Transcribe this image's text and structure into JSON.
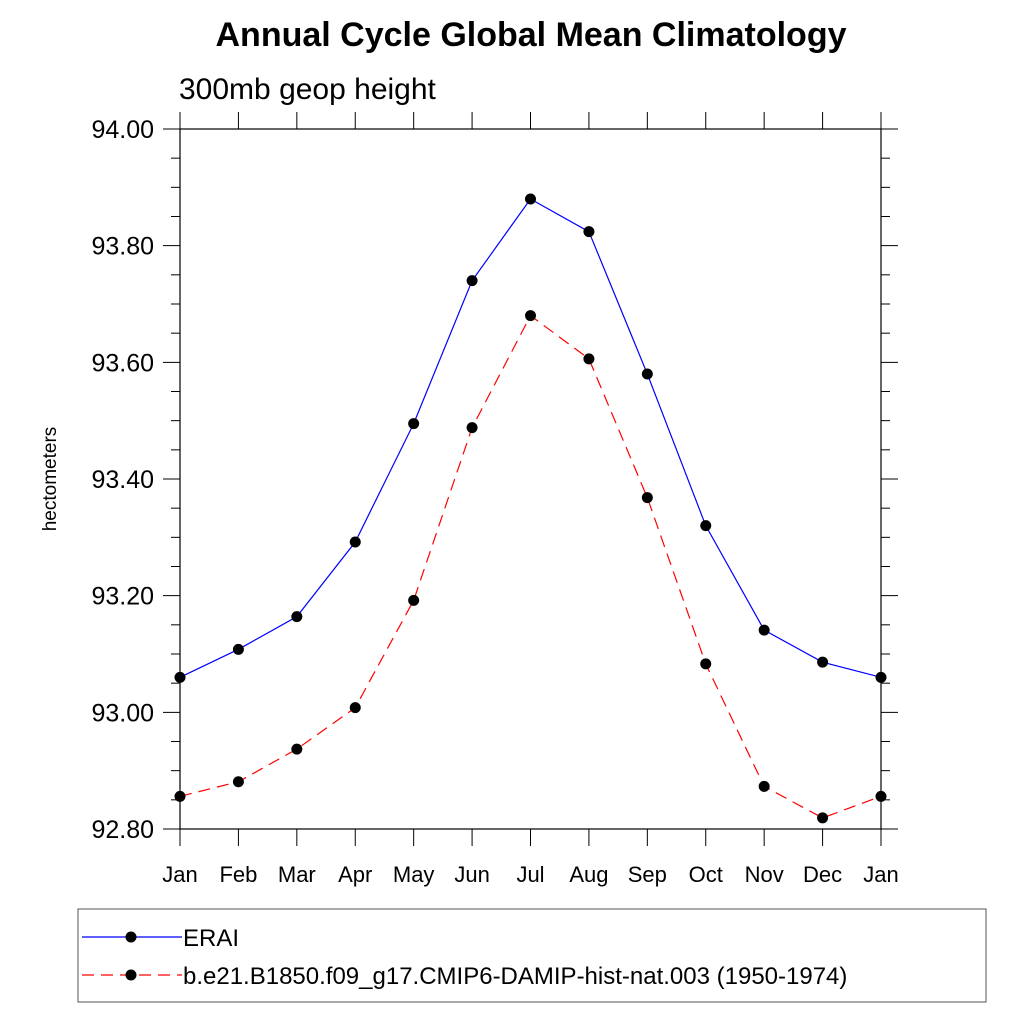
{
  "chart_data": {
    "type": "line",
    "title": "Annual Cycle Global Mean Climatology",
    "subtitle": "300mb geop height",
    "xlabel": "",
    "ylabel": "hectometers",
    "categories": [
      "Jan",
      "Feb",
      "Mar",
      "Apr",
      "May",
      "Jun",
      "Jul",
      "Aug",
      "Sep",
      "Oct",
      "Nov",
      "Dec",
      "Jan"
    ],
    "ylim": [
      92.8,
      94.0
    ],
    "yticks": [
      "92.80",
      "93.00",
      "93.20",
      "93.40",
      "93.60",
      "93.80",
      "94.00"
    ],
    "grid": false,
    "legend_position": "bottom",
    "series": [
      {
        "name": "ERAI",
        "color": "#0000ff",
        "line_style": "solid",
        "marker": "filled-circle",
        "values": [
          93.06,
          93.108,
          93.164,
          93.292,
          93.495,
          93.74,
          93.88,
          93.824,
          93.58,
          93.32,
          93.141,
          93.086,
          93.06
        ]
      },
      {
        "name": "b.e21.B1850.f09_g17.CMIP6-DAMIP-hist-nat.003 (1950-1974)",
        "color": "#ff0000",
        "line_style": "dashed",
        "marker": "filled-circle",
        "values": [
          92.856,
          92.881,
          92.937,
          93.008,
          93.192,
          93.488,
          93.68,
          93.606,
          93.368,
          93.083,
          92.873,
          92.819,
          92.856
        ]
      }
    ]
  }
}
